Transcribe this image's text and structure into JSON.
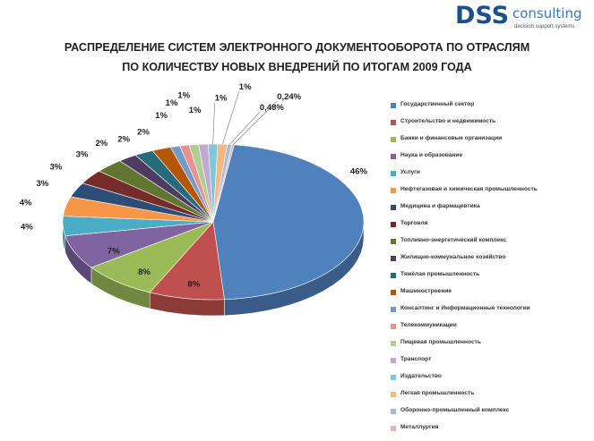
{
  "logo": {
    "main": "DSS",
    "sub": "consulting",
    "tagline": "decision support systems"
  },
  "chart_data": {
    "type": "pie",
    "title": "РАСПРЕДЕЛЕНИЕ СИСТЕМ ЭЛЕКТРОННОГО ДОКУМЕНТООБОРОТА ПО ОТРАСЛЯМ ПО КОЛИЧЕСТВУ НОВЫХ ВНЕДРЕНИЙ ПО ИТОГАМ 2009 ГОДА",
    "title_lines": [
      "РАСПРЕДЕЛЕНИЕ СИСТЕМ ЭЛЕКТРОННОГО ДОКУМЕНТООБОРОТА ПО ОТРАСЛЯМ",
      "ПО КОЛИЧЕСТВУ НОВЫХ ВНЕДРЕНИЙ ПО ИТОГАМ 2009 ГОДА"
    ],
    "legend_position": "right",
    "slices": [
      {
        "label": "Государственный сектор",
        "value": 46,
        "text": "46%",
        "color": "#4f81bd"
      },
      {
        "label": "Строительство и недвижимость",
        "value": 8,
        "text": "8%",
        "color": "#c0504d"
      },
      {
        "label": "Банки и финансовые организации",
        "value": 8,
        "text": "8%",
        "color": "#9bbb59"
      },
      {
        "label": "Наука и образование",
        "value": 7,
        "text": "7%",
        "color": "#8064a2"
      },
      {
        "label": "Услуги",
        "value": 4,
        "text": "4%",
        "color": "#4bacc6"
      },
      {
        "label": "Нефтегазовая и химическая промышленность",
        "value": 4,
        "text": "4%",
        "color": "#f79646"
      },
      {
        "label": "Медицина и фармацевтика",
        "value": 3,
        "text": "3%",
        "color": "#2c4d75"
      },
      {
        "label": "Торговля",
        "value": 3,
        "text": "3%",
        "color": "#772c2a"
      },
      {
        "label": "Топливно-энергетический комплекс",
        "value": 3,
        "text": "3%",
        "color": "#5f7530"
      },
      {
        "label": "Жилищно-коммунальное хозяйство",
        "value": 2,
        "text": "2%",
        "color": "#4d3b62"
      },
      {
        "label": "Тяжёлая промышленность",
        "value": 2,
        "text": "2%",
        "color": "#276a7c"
      },
      {
        "label": "Машиностроение",
        "value": 2,
        "text": "2%",
        "color": "#b65708"
      },
      {
        "label": "Консалтинг и Информационные технологии",
        "value": 1,
        "text": "1%",
        "color": "#729aca"
      },
      {
        "label": "Телекоммуникации",
        "value": 1,
        "text": "1%",
        "color": "#e6928e"
      },
      {
        "label": "Пищевая промышленность",
        "value": 1,
        "text": "1%",
        "color": "#b3cf8f"
      },
      {
        "label": "Транспорт",
        "value": 1,
        "text": "1%",
        "color": "#c1a9d6"
      },
      {
        "label": "Издательство",
        "value": 1,
        "text": "1%",
        "color": "#7fc8dc"
      },
      {
        "label": "Легкая промышленность",
        "value": 1,
        "text": "1%",
        "color": "#f9b780"
      },
      {
        "label": "Оборонно-промышленный комплекс",
        "value": 0.48,
        "text": "0,48%",
        "color": "#a6bcdc"
      },
      {
        "label": "Металлургия",
        "value": 0.24,
        "text": "0,24%",
        "color": "#e6b6b4"
      }
    ]
  }
}
